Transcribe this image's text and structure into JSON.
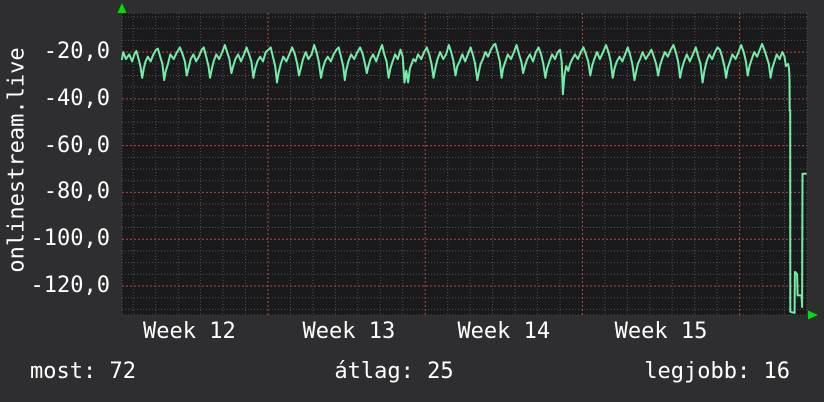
{
  "vertical_label": "onlinestream.live",
  "footer": {
    "items": [
      {
        "text": "most: 72"
      },
      {
        "text": "átlag: 25"
      },
      {
        "text": "legjobb: 16"
      }
    ]
  },
  "colors": {
    "outer_bg": "#2e2e30",
    "plot_bg": "#1a1a1c",
    "minor_grid": "#4f4f4f",
    "major_grid": "#b04846",
    "line": "#73eda7",
    "arrow": "#00dd00",
    "text": "#ffffff"
  },
  "chart_data": {
    "type": "line",
    "title": "",
    "vertical_label": "onlinestream.live",
    "x_unit": "days from chart start",
    "xlim_days": [
      0,
      30.5
    ],
    "ylim": [
      -132.4,
      -3.3
    ],
    "grid": true,
    "legend_position": "none",
    "y_ticks": [
      {
        "value": -20,
        "label": "-20,0"
      },
      {
        "value": -40,
        "label": "-40,0"
      },
      {
        "value": -60,
        "label": "-60,0"
      },
      {
        "value": -80,
        "label": "-80,0"
      },
      {
        "value": -100,
        "label": "-100,0"
      },
      {
        "value": -120,
        "label": "-120,0"
      }
    ],
    "x_ticks": [
      {
        "day": 3.0,
        "label": "Week 12"
      },
      {
        "day": 10.1,
        "label": "Week 13"
      },
      {
        "day": 17.0,
        "label": "Week 14"
      },
      {
        "day": 24.0,
        "label": "Week 15"
      }
    ],
    "week_boundary_days": [
      6.5,
      13.5,
      20.5,
      27.5
    ],
    "minor_x_offset_days": 0.5,
    "minor_x_step_days": 1,
    "minor_y_step": 5,
    "major_y_step": 20,
    "stats": {
      "most": 72,
      "atlag": 25,
      "legjobb": 16
    },
    "series": [
      {
        "name": "onlinestream.live",
        "color": "#73eda7",
        "points": [
          [
            0.0,
            -23
          ],
          [
            0.06,
            -20
          ],
          [
            0.18,
            -23
          ],
          [
            0.32,
            -21
          ],
          [
            0.45,
            -24
          ],
          [
            0.55,
            -21
          ],
          [
            0.64,
            -19.5
          ],
          [
            0.74,
            -23
          ],
          [
            0.82,
            -26
          ],
          [
            0.9,
            -31
          ],
          [
            0.97,
            -27
          ],
          [
            1.05,
            -24
          ],
          [
            1.15,
            -22
          ],
          [
            1.28,
            -24
          ],
          [
            1.4,
            -21
          ],
          [
            1.52,
            -19
          ],
          [
            1.6,
            -18.5
          ],
          [
            1.7,
            -22
          ],
          [
            1.8,
            -25
          ],
          [
            1.88,
            -32
          ],
          [
            1.95,
            -28
          ],
          [
            2.05,
            -25
          ],
          [
            2.15,
            -21
          ],
          [
            2.3,
            -23
          ],
          [
            2.45,
            -20
          ],
          [
            2.58,
            -18
          ],
          [
            2.7,
            -21
          ],
          [
            2.8,
            -24
          ],
          [
            2.88,
            -30
          ],
          [
            2.96,
            -27
          ],
          [
            3.06,
            -23
          ],
          [
            3.18,
            -21
          ],
          [
            3.3,
            -24
          ],
          [
            3.42,
            -22
          ],
          [
            3.55,
            -19
          ],
          [
            3.64,
            -18
          ],
          [
            3.75,
            -22
          ],
          [
            3.85,
            -26
          ],
          [
            3.92,
            -31
          ],
          [
            3.98,
            -28
          ],
          [
            4.08,
            -24
          ],
          [
            4.2,
            -21
          ],
          [
            4.33,
            -23
          ],
          [
            4.46,
            -20
          ],
          [
            4.58,
            -17
          ],
          [
            4.68,
            -20
          ],
          [
            4.78,
            -23
          ],
          [
            4.87,
            -29
          ],
          [
            4.95,
            -26
          ],
          [
            5.05,
            -23
          ],
          [
            5.17,
            -21
          ],
          [
            5.3,
            -24
          ],
          [
            5.43,
            -21
          ],
          [
            5.55,
            -18
          ],
          [
            5.66,
            -21
          ],
          [
            5.76,
            -24
          ],
          [
            5.85,
            -31
          ],
          [
            5.93,
            -27
          ],
          [
            6.03,
            -24
          ],
          [
            6.15,
            -22
          ],
          [
            6.28,
            -24
          ],
          [
            6.4,
            -20
          ],
          [
            6.52,
            -19
          ],
          [
            6.62,
            -18
          ],
          [
            6.72,
            -22
          ],
          [
            6.82,
            -26
          ],
          [
            6.9,
            -33
          ],
          [
            6.97,
            -29
          ],
          [
            7.07,
            -25
          ],
          [
            7.18,
            -22
          ],
          [
            7.32,
            -24
          ],
          [
            7.45,
            -21
          ],
          [
            7.58,
            -18
          ],
          [
            7.7,
            -21
          ],
          [
            7.8,
            -25
          ],
          [
            7.88,
            -30
          ],
          [
            7.96,
            -27
          ],
          [
            8.06,
            -23
          ],
          [
            8.18,
            -20
          ],
          [
            8.3,
            -23
          ],
          [
            8.44,
            -21
          ],
          [
            8.56,
            -17
          ],
          [
            8.66,
            -20
          ],
          [
            8.76,
            -24
          ],
          [
            8.86,
            -31
          ],
          [
            8.94,
            -27
          ],
          [
            9.04,
            -24
          ],
          [
            9.16,
            -22
          ],
          [
            9.3,
            -24
          ],
          [
            9.42,
            -21
          ],
          [
            9.55,
            -19
          ],
          [
            9.65,
            -18
          ],
          [
            9.75,
            -22
          ],
          [
            9.85,
            -26
          ],
          [
            9.92,
            -32
          ],
          [
            9.98,
            -28
          ],
          [
            10.08,
            -24
          ],
          [
            10.2,
            -21
          ],
          [
            10.34,
            -23
          ],
          [
            10.48,
            -20
          ],
          [
            10.6,
            -18
          ],
          [
            10.72,
            -21
          ],
          [
            10.82,
            -25
          ],
          [
            10.9,
            -29
          ],
          [
            10.97,
            -26
          ],
          [
            11.06,
            -23
          ],
          [
            11.18,
            -21
          ],
          [
            11.32,
            -24
          ],
          [
            11.45,
            -20
          ],
          [
            11.58,
            -17
          ],
          [
            11.68,
            -21
          ],
          [
            11.78,
            -24
          ],
          [
            11.87,
            -31
          ],
          [
            11.95,
            -27
          ],
          [
            12.05,
            -24
          ],
          [
            12.16,
            -21
          ],
          [
            12.28,
            -23
          ],
          [
            12.4,
            -19
          ],
          [
            12.5,
            -22
          ],
          [
            12.58,
            -33
          ],
          [
            12.66,
            -28
          ],
          [
            12.74,
            -33
          ],
          [
            12.82,
            -27
          ],
          [
            12.9,
            -25
          ],
          [
            12.97,
            -23
          ],
          [
            13.07,
            -24
          ],
          [
            13.18,
            -21
          ],
          [
            13.32,
            -23
          ],
          [
            13.45,
            -20
          ],
          [
            13.57,
            -18
          ],
          [
            13.68,
            -21
          ],
          [
            13.78,
            -25
          ],
          [
            13.87,
            -31
          ],
          [
            13.95,
            -27
          ],
          [
            14.05,
            -23
          ],
          [
            14.17,
            -20
          ],
          [
            14.3,
            -23
          ],
          [
            14.43,
            -21
          ],
          [
            14.55,
            -17
          ],
          [
            14.66,
            -20
          ],
          [
            14.76,
            -24
          ],
          [
            14.85,
            -30
          ],
          [
            14.93,
            -26
          ],
          [
            15.03,
            -24
          ],
          [
            15.15,
            -21
          ],
          [
            15.28,
            -24
          ],
          [
            15.4,
            -21
          ],
          [
            15.52,
            -18
          ],
          [
            15.62,
            -21
          ],
          [
            15.72,
            -25
          ],
          [
            15.82,
            -32
          ],
          [
            15.9,
            -28
          ],
          [
            15.97,
            -25
          ],
          [
            16.07,
            -23
          ],
          [
            16.18,
            -20
          ],
          [
            16.3,
            -22
          ],
          [
            16.42,
            -19
          ],
          [
            16.55,
            -17
          ],
          [
            16.62,
            -16.5
          ],
          [
            16.72,
            -20
          ],
          [
            16.82,
            -24
          ],
          [
            16.9,
            -31
          ],
          [
            16.97,
            -27
          ],
          [
            17.07,
            -24
          ],
          [
            17.18,
            -21
          ],
          [
            17.32,
            -23
          ],
          [
            17.45,
            -20
          ],
          [
            17.57,
            -17
          ],
          [
            17.68,
            -21
          ],
          [
            17.78,
            -24
          ],
          [
            17.86,
            -29
          ],
          [
            17.94,
            -26
          ],
          [
            18.04,
            -23
          ],
          [
            18.16,
            -21
          ],
          [
            18.3,
            -24
          ],
          [
            18.43,
            -20
          ],
          [
            18.55,
            -18
          ],
          [
            18.66,
            -21
          ],
          [
            18.76,
            -25
          ],
          [
            18.85,
            -31
          ],
          [
            18.93,
            -27
          ],
          [
            19.03,
            -24
          ],
          [
            19.15,
            -21
          ],
          [
            19.28,
            -23
          ],
          [
            19.4,
            -20
          ],
          [
            19.5,
            -19
          ],
          [
            19.58,
            -24
          ],
          [
            19.63,
            -38
          ],
          [
            19.7,
            -30
          ],
          [
            19.78,
            -26
          ],
          [
            19.87,
            -28
          ],
          [
            19.95,
            -25
          ],
          [
            20.05,
            -23
          ],
          [
            20.17,
            -21
          ],
          [
            20.3,
            -23
          ],
          [
            20.43,
            -20
          ],
          [
            20.55,
            -18
          ],
          [
            20.66,
            -21
          ],
          [
            20.76,
            -24
          ],
          [
            20.85,
            -30
          ],
          [
            20.93,
            -26
          ],
          [
            21.03,
            -23
          ],
          [
            21.15,
            -20
          ],
          [
            21.28,
            -23
          ],
          [
            21.42,
            -20
          ],
          [
            21.55,
            -17
          ],
          [
            21.66,
            -20
          ],
          [
            21.76,
            -24
          ],
          [
            21.85,
            -31
          ],
          [
            21.93,
            -27
          ],
          [
            22.03,
            -24
          ],
          [
            22.15,
            -22
          ],
          [
            22.28,
            -24
          ],
          [
            22.4,
            -21
          ],
          [
            22.52,
            -18
          ],
          [
            22.62,
            -21
          ],
          [
            22.72,
            -25
          ],
          [
            22.82,
            -32
          ],
          [
            22.9,
            -28
          ],
          [
            22.97,
            -25
          ],
          [
            23.07,
            -23
          ],
          [
            23.18,
            -20
          ],
          [
            23.32,
            -23
          ],
          [
            23.45,
            -21
          ],
          [
            23.57,
            -19
          ],
          [
            23.68,
            -22
          ],
          [
            23.78,
            -25
          ],
          [
            23.87,
            -30
          ],
          [
            23.95,
            -26
          ],
          [
            24.05,
            -23
          ],
          [
            24.17,
            -20
          ],
          [
            24.3,
            -22
          ],
          [
            24.43,
            -19
          ],
          [
            24.55,
            -17
          ],
          [
            24.66,
            -20
          ],
          [
            24.76,
            -24
          ],
          [
            24.85,
            -31
          ],
          [
            24.93,
            -27
          ],
          [
            25.03,
            -24
          ],
          [
            25.15,
            -21
          ],
          [
            25.28,
            -24
          ],
          [
            25.42,
            -21
          ],
          [
            25.55,
            -18
          ],
          [
            25.66,
            -22
          ],
          [
            25.76,
            -25
          ],
          [
            25.85,
            -33
          ],
          [
            25.93,
            -28
          ],
          [
            26.03,
            -24
          ],
          [
            26.15,
            -21
          ],
          [
            26.28,
            -23
          ],
          [
            26.4,
            -20
          ],
          [
            26.52,
            -18
          ],
          [
            26.62,
            -19
          ],
          [
            26.72,
            -22
          ],
          [
            26.82,
            -26
          ],
          [
            26.9,
            -31
          ],
          [
            26.97,
            -27
          ],
          [
            27.07,
            -24
          ],
          [
            27.18,
            -21
          ],
          [
            27.32,
            -23
          ],
          [
            27.45,
            -20
          ],
          [
            27.57,
            -17
          ],
          [
            27.68,
            -20
          ],
          [
            27.78,
            -24
          ],
          [
            27.86,
            -30
          ],
          [
            27.94,
            -26
          ],
          [
            28.04,
            -23
          ],
          [
            28.15,
            -20
          ],
          [
            28.28,
            -22
          ],
          [
            28.4,
            -19
          ],
          [
            28.5,
            -16.5
          ],
          [
            28.6,
            -19
          ],
          [
            28.7,
            -22
          ],
          [
            28.8,
            -25
          ],
          [
            28.88,
            -31
          ],
          [
            28.95,
            -27
          ],
          [
            29.05,
            -24
          ],
          [
            29.15,
            -21
          ],
          [
            29.28,
            -23
          ],
          [
            29.4,
            -20
          ],
          [
            29.5,
            -22
          ],
          [
            29.56,
            -26
          ],
          [
            29.66,
            -25
          ],
          [
            29.7,
            -27
          ],
          [
            29.72,
            -31
          ],
          [
            29.73,
            -45
          ],
          [
            29.75,
            -45
          ],
          [
            29.755,
            -131
          ],
          [
            29.94,
            -131.5
          ],
          [
            29.95,
            -131.5
          ],
          [
            29.96,
            -114
          ],
          [
            29.98,
            -114
          ],
          [
            30.06,
            -115
          ],
          [
            30.08,
            -124
          ],
          [
            30.26,
            -124
          ],
          [
            30.28,
            -129
          ],
          [
            30.3,
            -72
          ],
          [
            30.45,
            -72
          ]
        ]
      }
    ]
  }
}
